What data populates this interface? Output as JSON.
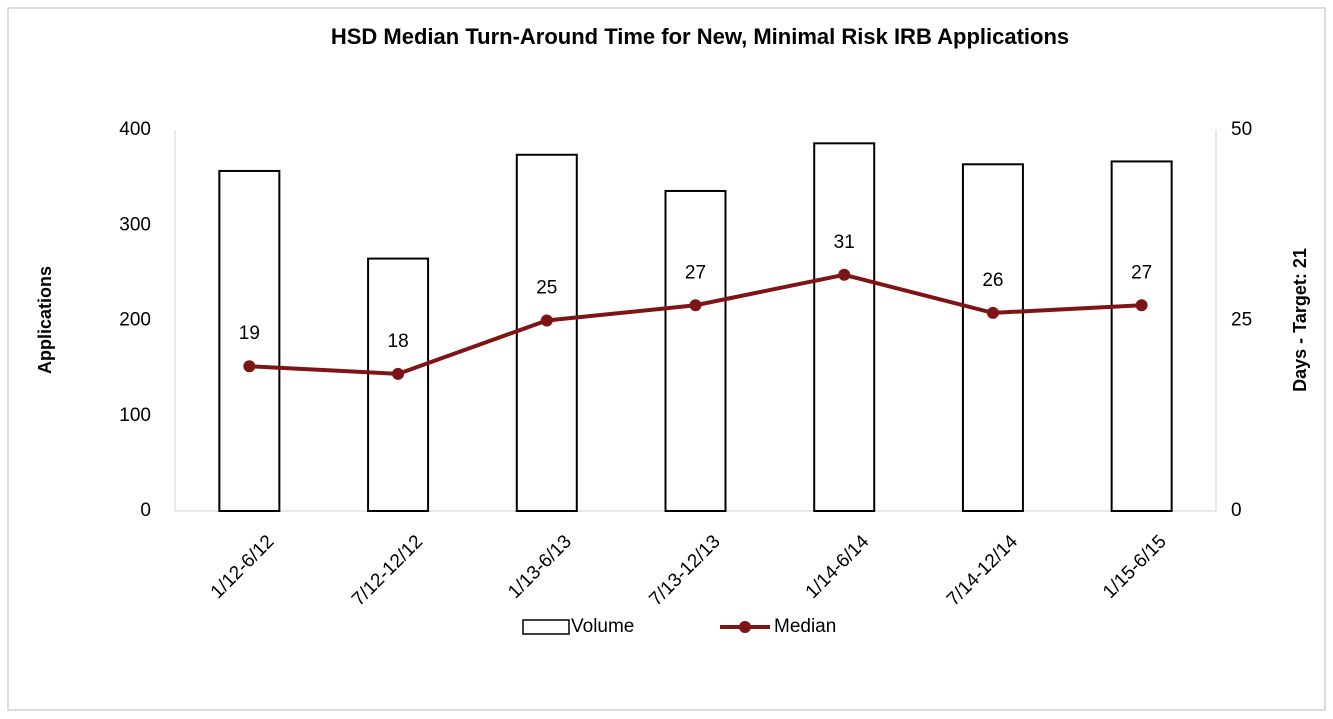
{
  "chart_data": {
    "type": "bar",
    "title": "HSD Median Turn-Around Time for New, Minimal Risk IRB Applications",
    "categories": [
      "1/12-6/12",
      "7/12-12/12",
      "1/13-6/13",
      "7/13-12/13",
      "1/14-6/14",
      "7/14-12/14",
      "1/15-6/15"
    ],
    "series": [
      {
        "name": "Volume",
        "type": "bar",
        "color": "#ffffff",
        "values": [
          357,
          265,
          374,
          336,
          386,
          364,
          367
        ]
      },
      {
        "name": "Median",
        "type": "line",
        "axis": "y2",
        "color": "#7f1416",
        "values": [
          19,
          18,
          25,
          27,
          31,
          26,
          27
        ]
      }
    ],
    "ylabel": "Applications",
    "y2label": "Days - Target: 21",
    "ylim": [
      0,
      400
    ],
    "yticks": [
      0,
      100,
      200,
      300,
      400
    ],
    "y2lim": [
      0,
      50
    ],
    "y2ticks": [
      0,
      25,
      50
    ],
    "legend": "bottom",
    "grid": false
  }
}
